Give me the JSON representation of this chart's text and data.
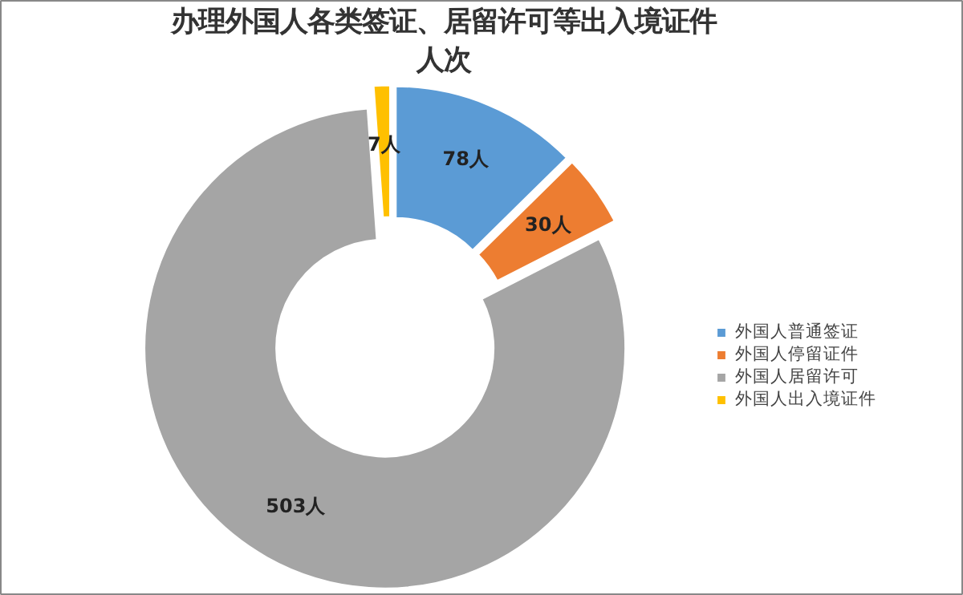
{
  "chart_data": {
    "type": "donut",
    "title": "办理外国人各类签证、居留许可等出入境证件人次",
    "categories": [
      "外国人普通签证",
      "外国人停留证件",
      "外国人居留许可",
      "外国人出入境证件"
    ],
    "values": [
      78,
      30,
      503,
      7
    ],
    "colors": [
      "#5b9bd5",
      "#ed7d31",
      "#a5a5a5",
      "#ffc000"
    ],
    "value_labels": [
      "78人",
      "30人",
      "503人",
      "7人"
    ],
    "legend": "right"
  }
}
